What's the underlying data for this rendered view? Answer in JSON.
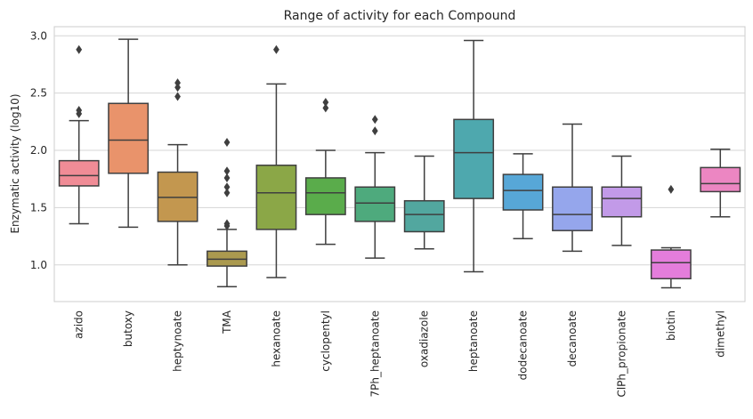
{
  "chart_data": {
    "type": "box",
    "title": "Range of activity for each Compound",
    "xlabel": "",
    "ylabel": "Enzymatic activity (log10)",
    "ylim": [
      0.68,
      3.08
    ],
    "yticks": [
      "1.0",
      "1.5",
      "2.0",
      "2.5",
      "3.0"
    ],
    "grid": "horizontal",
    "categories": [
      "azido",
      "butoxy",
      "heptynoate",
      "TMA",
      "hexanoate",
      "cyclopentyl",
      "7Ph_heptanoate",
      "oxadiazole",
      "heptanoate",
      "dodecanoate",
      "decanoate",
      "ClPh_propionate",
      "biotin",
      "dimethyl"
    ],
    "colors": [
      "#f08c96",
      "#e9936b",
      "#c3974f",
      "#ab9a4f",
      "#8ba747",
      "#5aac4b",
      "#4eaa7d",
      "#52a79f",
      "#4ea8ae",
      "#57a7d7",
      "#95a6ec",
      "#c29ae8",
      "#e47ddb",
      "#ec86c2"
    ],
    "boxes": [
      {
        "min": 1.36,
        "q1": 1.69,
        "median": 1.78,
        "q3": 1.91,
        "max": 2.26,
        "outliers": [
          2.88,
          2.35,
          2.32
        ]
      },
      {
        "min": 1.33,
        "q1": 1.8,
        "median": 2.09,
        "q3": 2.41,
        "max": 2.97,
        "outliers": []
      },
      {
        "min": 1.0,
        "q1": 1.38,
        "median": 1.59,
        "q3": 1.81,
        "max": 2.05,
        "outliers": [
          2.59,
          2.55,
          2.47
        ]
      },
      {
        "min": 0.81,
        "q1": 0.99,
        "median": 1.05,
        "q3": 1.12,
        "max": 1.31,
        "outliers": [
          2.07,
          1.82,
          1.76,
          1.68,
          1.63,
          1.36,
          1.34
        ]
      },
      {
        "min": 0.89,
        "q1": 1.31,
        "median": 1.63,
        "q3": 1.87,
        "max": 2.58,
        "outliers": [
          2.88
        ]
      },
      {
        "min": 1.18,
        "q1": 1.44,
        "median": 1.63,
        "q3": 1.76,
        "max": 2.0,
        "outliers": [
          2.42,
          2.37
        ]
      },
      {
        "min": 1.06,
        "q1": 1.38,
        "median": 1.54,
        "q3": 1.68,
        "max": 1.98,
        "outliers": [
          2.27,
          2.17
        ]
      },
      {
        "min": 1.14,
        "q1": 1.29,
        "median": 1.44,
        "q3": 1.56,
        "max": 1.95,
        "outliers": []
      },
      {
        "min": 0.94,
        "q1": 1.58,
        "median": 1.98,
        "q3": 2.27,
        "max": 2.96,
        "outliers": []
      },
      {
        "min": 1.23,
        "q1": 1.48,
        "median": 1.65,
        "q3": 1.79,
        "max": 1.97,
        "outliers": []
      },
      {
        "min": 1.12,
        "q1": 1.3,
        "median": 1.44,
        "q3": 1.68,
        "max": 2.23,
        "outliers": []
      },
      {
        "min": 1.17,
        "q1": 1.42,
        "median": 1.58,
        "q3": 1.68,
        "max": 1.95,
        "outliers": []
      },
      {
        "min": 0.8,
        "q1": 0.88,
        "median": 1.02,
        "q3": 1.13,
        "max": 1.15,
        "outliers": [
          1.66
        ]
      },
      {
        "min": 1.42,
        "q1": 1.64,
        "median": 1.71,
        "q3": 1.85,
        "max": 2.01,
        "outliers": []
      }
    ]
  }
}
